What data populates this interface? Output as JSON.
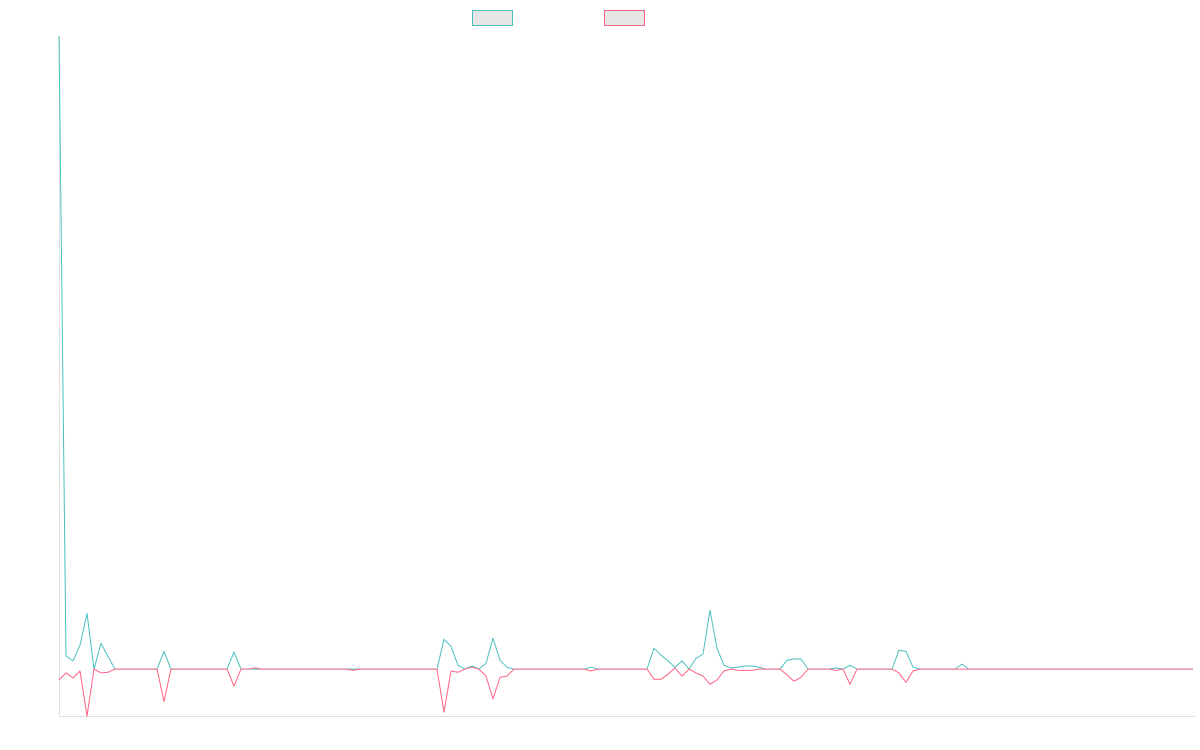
{
  "chart_data": {
    "type": "line",
    "ylim": [
      -7.4,
      100
    ],
    "series": [
      {
        "color": "#4bc0c0",
        "values": [
          100,
          2.1,
          1.3,
          3.8,
          8.8,
          0,
          4.1,
          2,
          0,
          0,
          0,
          0,
          0,
          0,
          0,
          2.8,
          0,
          0,
          0,
          0,
          0,
          0,
          0,
          0,
          0,
          2.7,
          0,
          0,
          0,
          0,
          0,
          0,
          0,
          0,
          0,
          0,
          0,
          0,
          0,
          0,
          0,
          0,
          0,
          0,
          0,
          0,
          0,
          0,
          0,
          0,
          0,
          0,
          0,
          0,
          0,
          4.7,
          3.6,
          0.6,
          0,
          0.5,
          0,
          0.9,
          4.9,
          1.4,
          0.3,
          0,
          0,
          0,
          0,
          0,
          0,
          0,
          0,
          0,
          0,
          0,
          0.3,
          0,
          0,
          0,
          0,
          0,
          0,
          0,
          0,
          3.3,
          2.2,
          1.3,
          0.3,
          1.3,
          0,
          1.7,
          2.4,
          9.3,
          3.3,
          0.6,
          0.2,
          0.3,
          0.5,
          0.5,
          0.3,
          0,
          0,
          0,
          1.4,
          1.6,
          1.6,
          0,
          0,
          0,
          0,
          0.2,
          0,
          0.6,
          0,
          0,
          0,
          0,
          0,
          0,
          3,
          2.8,
          0.3,
          0,
          0,
          0,
          0,
          0,
          0,
          0.8,
          0,
          0,
          0,
          0,
          0,
          0,
          0,
          0,
          0,
          0,
          0,
          0,
          0,
          0,
          0,
          0,
          0,
          0,
          0,
          0,
          0,
          0,
          0,
          0,
          0,
          0,
          0,
          0,
          0,
          0,
          0,
          0,
          0
        ]
      },
      {
        "color": "#ff6384",
        "values": [
          -1.7,
          -0.6,
          -1.4,
          -0.3,
          -7.4,
          0,
          -0.6,
          -0.5,
          0,
          0,
          0,
          0,
          0,
          0,
          0,
          -5.1,
          0,
          0,
          0,
          0,
          0,
          0,
          0,
          0,
          0,
          -2.7,
          0,
          0,
          0.2,
          0,
          0,
          0,
          0,
          0,
          0,
          0,
          0,
          0,
          0,
          0,
          0,
          0,
          -0.2,
          0,
          0,
          0,
          0,
          0,
          0,
          0,
          0,
          0,
          0,
          0,
          0,
          -6.8,
          -0.3,
          -0.5,
          0,
          0.3,
          0,
          -1.1,
          -4.7,
          -1.3,
          -1.1,
          0,
          0,
          0,
          0,
          0,
          0,
          0,
          0,
          0,
          0,
          0,
          -0.3,
          0,
          0,
          0,
          0,
          0,
          0,
          0,
          0,
          -1.6,
          -1.6,
          -0.8,
          0.2,
          -1.1,
          0,
          -0.6,
          -1.1,
          -2.4,
          -1.7,
          -0.3,
          0,
          -0.2,
          -0.2,
          -0.2,
          0,
          0,
          0,
          0,
          -0.9,
          -1.9,
          -1.3,
          0,
          0,
          0,
          0,
          -0.2,
          0,
          -2.4,
          0,
          0,
          0,
          0,
          0,
          0,
          -0.6,
          -2.1,
          -0.3,
          0,
          0,
          0,
          0,
          0,
          0,
          0,
          0,
          0,
          0,
          0,
          0,
          0,
          0,
          0,
          0,
          0,
          0,
          0,
          0,
          0,
          0,
          0,
          0,
          0,
          0,
          0,
          0,
          0,
          0,
          0,
          0,
          0,
          0,
          0,
          0,
          0,
          0,
          0,
          0
        ]
      }
    ]
  }
}
